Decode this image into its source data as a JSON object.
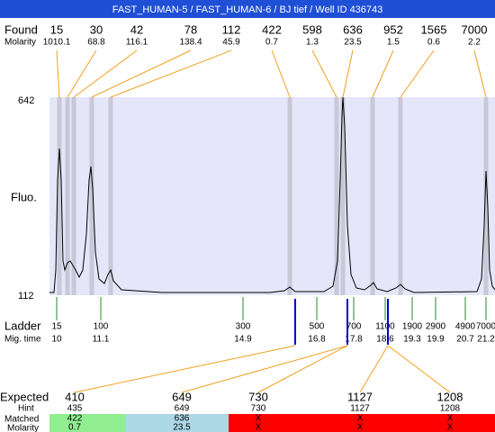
{
  "header": {
    "title": "FAST_HUMAN-5 / FAST_HUMAN-6 / BJ tief / Well ID 436743"
  },
  "found": {
    "label": "Found",
    "molarity_label": "Molarity",
    "peaks": [
      {
        "size": 15,
        "molarity": 1010.1
      },
      {
        "size": 30,
        "molarity": 68.8
      },
      {
        "size": 42,
        "molarity": 116.1
      },
      {
        "size": 78,
        "molarity": 138.4
      },
      {
        "size": 112,
        "molarity": 45.9
      },
      {
        "size": 422,
        "molarity": 0.7
      },
      {
        "size": 598,
        "molarity": 1.3
      },
      {
        "size": 636,
        "molarity": 23.5
      },
      {
        "size": 952,
        "molarity": 1.5
      },
      {
        "size": 1565,
        "molarity": 0.6
      },
      {
        "size": 7000,
        "molarity": 2.2
      }
    ]
  },
  "plot": {
    "y_label": "Fluo.",
    "y_max": 642,
    "y_min": 112
  },
  "ladder": {
    "label": "Ladder",
    "mig_label": "Mig. time",
    "items": [
      {
        "size": 15,
        "mig_time": 10
      },
      {
        "size": 100,
        "mig_time": 11.1
      },
      {
        "size": 300,
        "mig_time": 14.9
      },
      {
        "size": 500,
        "mig_time": 16.8
      },
      {
        "size": 700,
        "mig_time": 17.8
      },
      {
        "size": 1100,
        "mig_time": 18.6
      },
      {
        "size": 1900,
        "mig_time": 19.3
      },
      {
        "size": 2900,
        "mig_time": 19.9
      },
      {
        "size": 4900,
        "mig_time": 20.7
      },
      {
        "size": 7000,
        "mig_time": 21.2
      }
    ]
  },
  "expected": {
    "label": "Expected",
    "hint_label": "Hint",
    "matched_label": "Matched",
    "molarity_label": "Molarity",
    "columns": [
      {
        "expected": 410,
        "hint": 435,
        "matched": 422,
        "molarity": 0.7
      },
      {
        "expected": 649,
        "hint": 649,
        "matched": 636,
        "molarity": 23.5
      },
      {
        "expected": 730,
        "hint": 730,
        "matched": "X",
        "molarity": "X"
      },
      {
        "expected": 1127,
        "hint": 1127,
        "matched": "X",
        "molarity": "X"
      },
      {
        "expected": 1208,
        "hint": 1208,
        "matched": "X",
        "molarity": "X"
      }
    ]
  }
}
